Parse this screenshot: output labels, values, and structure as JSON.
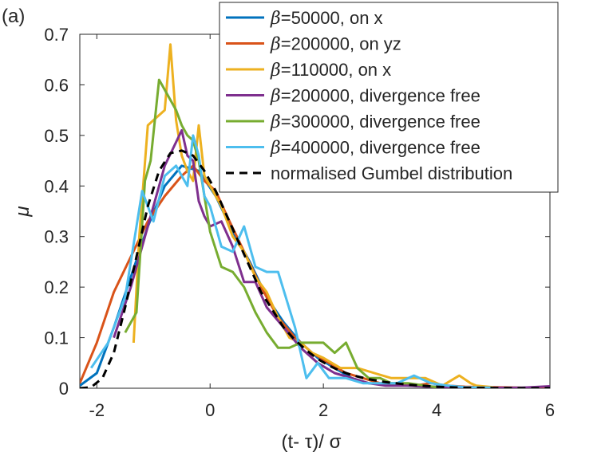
{
  "panel_label": "(a)",
  "colors": {
    "blue": "#0072BD",
    "red": "#D95319",
    "yellow": "#EDB120",
    "purple": "#7E2F8E",
    "green": "#77AC30",
    "cyan": "#4DBEEE",
    "black": "#000000"
  },
  "chart_data": {
    "type": "line",
    "title": "",
    "xlabel": "(t- τ)/ σ",
    "ylabel": "μ",
    "xlim": [
      -2.3,
      6
    ],
    "ylim": [
      0,
      0.7
    ],
    "xticks": [
      -2,
      0,
      2,
      4,
      6
    ],
    "yticks": [
      0,
      0.1,
      0.2,
      0.3,
      0.4,
      0.5,
      0.6,
      0.7
    ],
    "xtick_labels": [
      "-2",
      "0",
      "2",
      "4",
      "6"
    ],
    "ytick_labels": [
      "0",
      "0.1",
      "0.2",
      "0.3",
      "0.4",
      "0.5",
      "0.6",
      "0.7"
    ],
    "grid": false,
    "legend_position": "top-right",
    "series": [
      {
        "name": "β=50000, on x",
        "prefix": "β",
        "suffix": "=50000, on x",
        "color": "#0072BD",
        "dashed": false,
        "x": [
          -2.3,
          -2.0,
          -1.7,
          -1.4,
          -1.1,
          -0.8,
          -0.5,
          -0.2,
          0.1,
          0.4,
          0.7,
          1.0,
          1.3,
          1.6,
          1.9,
          2.2,
          2.5,
          2.8,
          3.1,
          3.5,
          4.0,
          4.5,
          5.0,
          5.5,
          6.0
        ],
        "y": [
          0.005,
          0.03,
          0.12,
          0.22,
          0.32,
          0.4,
          0.44,
          0.43,
          0.38,
          0.31,
          0.25,
          0.18,
          0.13,
          0.09,
          0.06,
          0.04,
          0.02,
          0.01,
          0.008,
          0.005,
          0.003,
          0.002,
          0.001,
          0.001,
          0.001
        ]
      },
      {
        "name": "β=200000, on yz",
        "prefix": "β",
        "suffix": "=200000, on yz",
        "color": "#D95319",
        "dashed": false,
        "x": [
          -2.3,
          -2.0,
          -1.7,
          -1.4,
          -1.1,
          -0.8,
          -0.5,
          -0.3,
          -0.1,
          0.1,
          0.3,
          0.6,
          0.9,
          1.2,
          1.5,
          1.8,
          2.1,
          2.4,
          2.7,
          3.0,
          3.3,
          3.6,
          3.9,
          4.2,
          4.5,
          5.0,
          5.5,
          6.0
        ],
        "y": [
          0.01,
          0.09,
          0.19,
          0.26,
          0.33,
          0.38,
          0.42,
          0.44,
          0.41,
          0.39,
          0.34,
          0.27,
          0.2,
          0.14,
          0.1,
          0.07,
          0.05,
          0.03,
          0.02,
          0.01,
          0.01,
          0.005,
          0.01,
          0.005,
          0.003,
          0.002,
          0.001,
          0.001
        ]
      },
      {
        "name": "β=110000, on x",
        "prefix": "β",
        "suffix": "=110000, on x",
        "color": "#EDB120",
        "dashed": false,
        "x": [
          -1.35,
          -1.25,
          -1.1,
          -1.0,
          -0.9,
          -0.8,
          -0.7,
          -0.6,
          -0.5,
          -0.4,
          -0.3,
          -0.2,
          -0.1,
          0.0,
          0.2,
          0.4,
          0.6,
          0.8,
          1.0,
          1.2,
          1.4,
          1.6,
          1.8,
          2.0,
          2.3,
          2.6,
          2.9,
          3.2,
          3.5,
          3.8,
          4.1,
          4.4,
          4.6,
          4.7,
          5.0
        ],
        "y": [
          0.09,
          0.3,
          0.52,
          0.53,
          0.54,
          0.55,
          0.68,
          0.53,
          0.46,
          0.43,
          0.41,
          0.52,
          0.42,
          0.4,
          0.36,
          0.3,
          0.27,
          0.22,
          0.19,
          0.14,
          0.1,
          0.09,
          0.07,
          0.06,
          0.04,
          0.04,
          0.03,
          0.02,
          0.02,
          0.02,
          0.005,
          0.025,
          0.01,
          0.005,
          0.002
        ]
      },
      {
        "name": "β=200000, divergence free",
        "prefix": "β",
        "suffix": "=200000, divergence free",
        "color": "#7E2F8E",
        "dashed": false,
        "x": [
          -1.7,
          -1.4,
          -1.1,
          -0.8,
          -0.5,
          -0.4,
          -0.3,
          -0.2,
          -0.1,
          0.0,
          0.2,
          0.4,
          0.6,
          0.8,
          1.0,
          1.3,
          1.6,
          1.9,
          2.2,
          2.5,
          2.8,
          3.1,
          3.5,
          4.0,
          4.5,
          5.0,
          5.5,
          6.0
        ],
        "y": [
          0.1,
          0.2,
          0.32,
          0.44,
          0.51,
          0.46,
          0.45,
          0.37,
          0.34,
          0.32,
          0.33,
          0.28,
          0.21,
          0.21,
          0.16,
          0.12,
          0.08,
          0.05,
          0.03,
          0.02,
          0.01,
          0.005,
          0.005,
          0.002,
          0.001,
          0.001,
          0.001,
          0.004
        ]
      },
      {
        "name": "β=300000, divergence free",
        "prefix": "β",
        "suffix": "=300000, divergence free",
        "color": "#77AC30",
        "dashed": false,
        "x": [
          -1.5,
          -1.3,
          -1.15,
          -1.05,
          -0.9,
          -0.85,
          -0.75,
          -0.6,
          -0.5,
          -0.4,
          -0.3,
          -0.2,
          -0.1,
          0.0,
          0.2,
          0.4,
          0.6,
          0.8,
          1.0,
          1.2,
          1.4,
          1.6,
          1.8,
          2.0,
          2.2,
          2.4,
          2.6,
          2.8,
          3.0,
          3.2,
          3.5,
          3.8,
          4.0
        ],
        "y": [
          0.11,
          0.15,
          0.41,
          0.45,
          0.61,
          0.6,
          0.58,
          0.55,
          0.52,
          0.5,
          0.49,
          0.45,
          0.38,
          0.31,
          0.24,
          0.23,
          0.2,
          0.15,
          0.11,
          0.08,
          0.08,
          0.09,
          0.09,
          0.09,
          0.07,
          0.09,
          0.04,
          0.02,
          0.02,
          0.01,
          0.01,
          0.005,
          0.002
        ]
      },
      {
        "name": "β=400000, divergence free",
        "prefix": "β",
        "suffix": "=400000, divergence free",
        "color": "#4DBEEE",
        "dashed": false,
        "x": [
          -2.1,
          -1.8,
          -1.5,
          -1.2,
          -1.0,
          -0.8,
          -0.6,
          -0.4,
          -0.3,
          -0.2,
          -0.1,
          0.0,
          0.2,
          0.4,
          0.6,
          0.8,
          1.0,
          1.2,
          1.5,
          1.7,
          1.9,
          2.1,
          2.4,
          2.7,
          3.0,
          3.3,
          3.6,
          3.9,
          4.2,
          4.5,
          5.0
        ],
        "y": [
          0.04,
          0.09,
          0.18,
          0.39,
          0.33,
          0.42,
          0.44,
          0.4,
          0.5,
          0.46,
          0.38,
          0.36,
          0.28,
          0.27,
          0.32,
          0.24,
          0.23,
          0.23,
          0.12,
          0.02,
          0.05,
          0.02,
          0.02,
          0.01,
          0.01,
          0.01,
          0.025,
          0.01,
          0.005,
          0.002,
          0.001
        ]
      },
      {
        "name": "normalised Gumbel distribution",
        "prefix": "",
        "suffix": "normalised Gumbel distribution",
        "color": "#000000",
        "dashed": true,
        "x": [
          -2.3,
          -2.1,
          -1.9,
          -1.7,
          -1.5,
          -1.3,
          -1.1,
          -0.9,
          -0.7,
          -0.5,
          -0.3,
          -0.1,
          0.1,
          0.3,
          0.5,
          0.7,
          0.9,
          1.1,
          1.3,
          1.5,
          1.7,
          1.9,
          2.1,
          2.3,
          2.5,
          2.8,
          3.1,
          3.5,
          4.0,
          4.5,
          5.0,
          5.5,
          6.0
        ],
        "y": [
          0.0,
          0.002,
          0.02,
          0.07,
          0.16,
          0.26,
          0.36,
          0.43,
          0.465,
          0.47,
          0.46,
          0.43,
          0.39,
          0.34,
          0.29,
          0.24,
          0.19,
          0.155,
          0.12,
          0.095,
          0.075,
          0.058,
          0.045,
          0.034,
          0.026,
          0.018,
          0.012,
          0.007,
          0.003,
          0.001,
          0.0005,
          0.0002,
          0.0001
        ]
      }
    ]
  }
}
